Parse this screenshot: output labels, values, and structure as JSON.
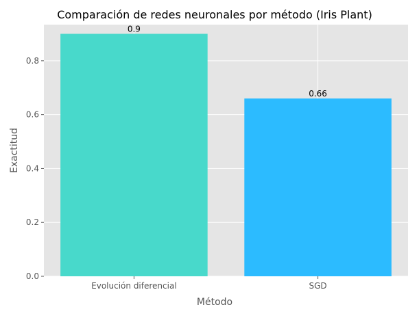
{
  "chart_data": {
    "type": "bar",
    "title": "Comparación de redes neuronales por método (Iris Plant)",
    "xlabel": "Método",
    "ylabel": "Exactitud",
    "categories": [
      "Evolución diferencial",
      "SGD"
    ],
    "values": [
      0.9,
      0.66
    ],
    "data_labels": [
      "0.9",
      "0.66"
    ],
    "bar_colors": [
      "#48D9CB",
      "#2CBBFF"
    ],
    "ylim": [
      0,
      0.9342
    ],
    "yticks": [
      0.0,
      0.2,
      0.4,
      0.6,
      0.8
    ],
    "ytick_labels": [
      "0.0",
      "0.2",
      "0.4",
      "0.6",
      "0.8"
    ],
    "grid": true,
    "legend": "none",
    "style": {
      "plot_background": "#E5E5E5",
      "grid_color": "#FFFFFF",
      "tick_color": "#555555"
    }
  }
}
